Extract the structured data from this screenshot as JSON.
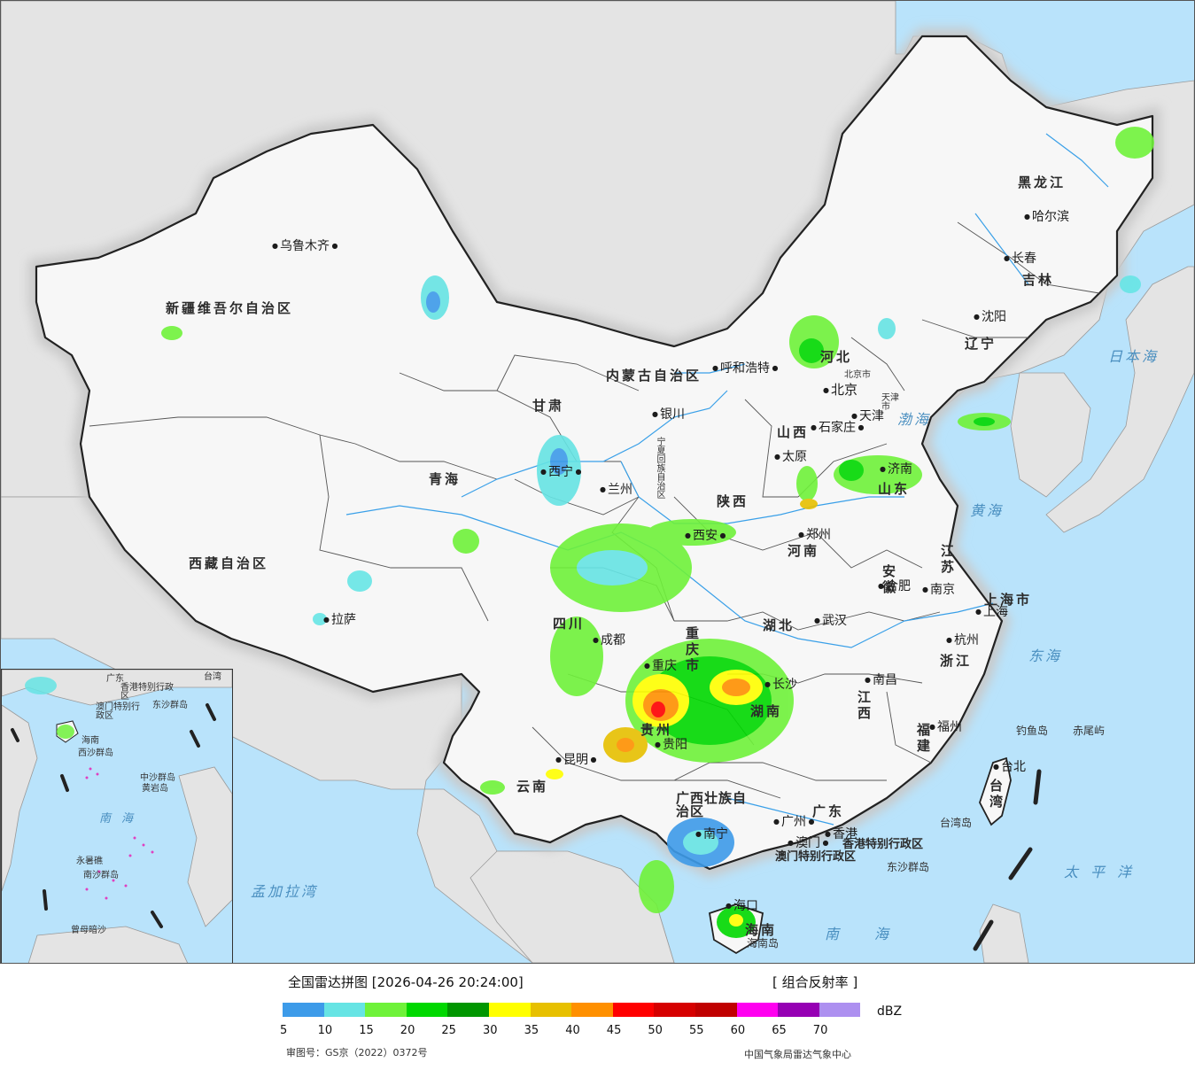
{
  "colors": {
    "ocean": "#b9e3fb",
    "land_foreign": "#e4e4e4",
    "land_china": "#f7f7f7",
    "border": "#222222",
    "river": "#3aa0e8"
  },
  "map": {
    "provinces": [
      "新疆维吾尔自治区",
      "西藏自治区",
      "青海",
      "甘肃",
      "内蒙古自治区",
      "黑龙江",
      "吉林",
      "辽宁",
      "河北",
      "山西",
      "山东",
      "河南",
      "陕西",
      "宁夏回族自治区",
      "四川",
      "重庆市",
      "湖北",
      "安徽",
      "江苏",
      "上海市",
      "浙江",
      "江西",
      "湖南",
      "贵州",
      "云南",
      "广西壮族自治区",
      "广东",
      "福建",
      "台湾",
      "海南",
      "北京市",
      "天津市",
      "香港特别行政区",
      "澳门特别行政区"
    ],
    "cities": [
      "乌鲁木齐",
      "拉萨",
      "西宁",
      "兰州",
      "银川",
      "呼和浩特",
      "北京",
      "天津",
      "石家庄",
      "太原",
      "济南",
      "郑州",
      "西安",
      "成都",
      "重庆",
      "武汉",
      "合肥",
      "南京",
      "上海",
      "杭州",
      "长沙",
      "南昌",
      "福州",
      "贵阳",
      "昆明",
      "南宁",
      "广州",
      "香港",
      "澳门",
      "海口",
      "台北",
      "哈尔滨",
      "长春",
      "沈阳"
    ],
    "seas": [
      "渤海",
      "黄海",
      "东海",
      "南海",
      "太平洋",
      "日本海",
      "孟加拉湾"
    ],
    "islands": [
      "钓鱼岛",
      "赤尾屿",
      "台湾岛",
      "东沙群岛",
      "海南岛"
    ]
  },
  "inset": {
    "labels": [
      "广东",
      "台湾",
      "香港特别行政区",
      "澳门特别行政区",
      "东沙群岛",
      "海南",
      "西沙群岛",
      "中沙群岛",
      "黄岩岛",
      "南海",
      "永暑礁",
      "南沙群岛",
      "曾母暗沙"
    ]
  },
  "legend": {
    "title": "全国雷达拼图 [2026-04-26 20:24:00]",
    "product": "[ 组合反射率 ]",
    "unit": "dBZ",
    "ticks": [
      "5",
      "10",
      "15",
      "20",
      "25",
      "30",
      "35",
      "40",
      "45",
      "50",
      "55",
      "60",
      "65",
      "70"
    ],
    "colors": [
      "#3d9be9",
      "#66e4e4",
      "#6ff23a",
      "#00d800",
      "#009600",
      "#ffff00",
      "#e7c000",
      "#ff9000",
      "#ff0000",
      "#d60000",
      "#c00000",
      "#ff00f0",
      "#9600b4",
      "#ad90f0"
    ],
    "approval": "审图号：GS京（2022）0372号",
    "credit": "中国气象局雷达气象中心"
  }
}
